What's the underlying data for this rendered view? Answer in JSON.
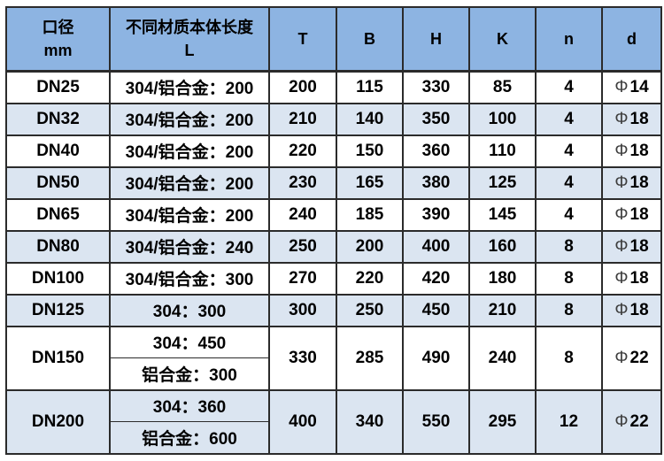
{
  "colors": {
    "header_bg": "#8db4e2",
    "row_shaded_bg": "#dbe5f1",
    "row_plain_bg": "#ffffff",
    "border": "#2b2b2b",
    "text": "#000000"
  },
  "table": {
    "columns": [
      {
        "id": "dn",
        "label_lines": [
          "口径",
          "mm"
        ]
      },
      {
        "id": "L",
        "label_lines": [
          "不同材质本体长度",
          "L"
        ]
      },
      {
        "id": "T",
        "label_lines": [
          "T"
        ]
      },
      {
        "id": "B",
        "label_lines": [
          "B"
        ]
      },
      {
        "id": "H",
        "label_lines": [
          "H"
        ]
      },
      {
        "id": "K",
        "label_lines": [
          "K"
        ]
      },
      {
        "id": "n",
        "label_lines": [
          "n"
        ]
      },
      {
        "id": "d",
        "label_lines": [
          "d"
        ]
      }
    ],
    "rows": [
      {
        "dn": "DN25",
        "L": [
          "304/铝合金：200"
        ],
        "T": "200",
        "B": "115",
        "H": "330",
        "K": "85",
        "n": "4",
        "d": "Φ14",
        "shaded": false
      },
      {
        "dn": "DN32",
        "L": [
          "304/铝合金：200"
        ],
        "T": "210",
        "B": "140",
        "H": "350",
        "K": "100",
        "n": "4",
        "d": "Φ18",
        "shaded": true
      },
      {
        "dn": "DN40",
        "L": [
          "304/铝合金：200"
        ],
        "T": "220",
        "B": "150",
        "H": "360",
        "K": "110",
        "n": "4",
        "d": "Φ18",
        "shaded": false
      },
      {
        "dn": "DN50",
        "L": [
          "304/铝合金：200"
        ],
        "T": "230",
        "B": "165",
        "H": "380",
        "K": "125",
        "n": "4",
        "d": "Φ18",
        "shaded": true
      },
      {
        "dn": "DN65",
        "L": [
          "304/铝合金：200"
        ],
        "T": "240",
        "B": "185",
        "H": "390",
        "K": "145",
        "n": "4",
        "d": "Φ18",
        "shaded": false
      },
      {
        "dn": "DN80",
        "L": [
          "304/铝合金：240"
        ],
        "T": "250",
        "B": "200",
        "H": "400",
        "K": "160",
        "n": "8",
        "d": "Φ18",
        "shaded": true
      },
      {
        "dn": "DN100",
        "L": [
          "304/铝合金：300"
        ],
        "T": "270",
        "B": "220",
        "H": "420",
        "K": "180",
        "n": "8",
        "d": "Φ18",
        "shaded": false
      },
      {
        "dn": "DN125",
        "L": [
          "304：300"
        ],
        "T": "300",
        "B": "250",
        "H": "450",
        "K": "210",
        "n": "8",
        "d": "Φ18",
        "shaded": true
      },
      {
        "dn": "DN150",
        "L": [
          "304：450",
          "铝合金：300"
        ],
        "T": "330",
        "B": "285",
        "H": "490",
        "K": "240",
        "n": "8",
        "d": "Φ22",
        "shaded": false
      },
      {
        "dn": "DN200",
        "L": [
          "304：360",
          "铝合金：600"
        ],
        "T": "400",
        "B": "340",
        "H": "550",
        "K": "295",
        "n": "12",
        "d": "Φ22",
        "shaded": true
      }
    ]
  }
}
